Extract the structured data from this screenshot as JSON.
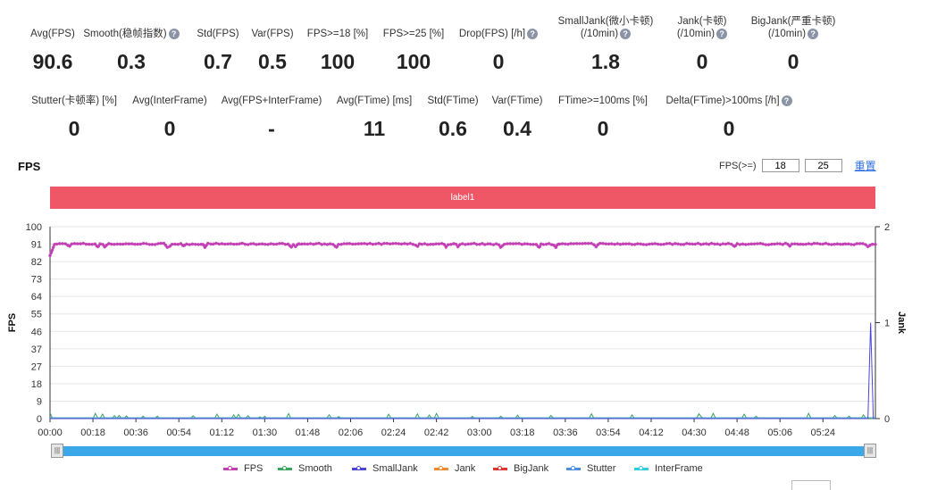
{
  "metrics_row1": [
    {
      "label": "Avg(FPS)",
      "value": "90.6",
      "help": false
    },
    {
      "label": "Smooth(稳帧指数)",
      "value": "0.3",
      "help": true
    },
    {
      "label": "Std(FPS)",
      "value": "0.7",
      "help": false
    },
    {
      "label": "Var(FPS)",
      "value": "0.5",
      "help": false
    },
    {
      "label": "FPS>=18 [%]",
      "value": "100",
      "help": false
    },
    {
      "label": "FPS>=25 [%]",
      "value": "100",
      "help": false
    },
    {
      "label": "Drop(FPS) [/h]",
      "value": "0",
      "help": true
    },
    {
      "label": "SmallJank(微小卡顿)",
      "label2": "(/10min)",
      "value": "1.8",
      "help": true
    },
    {
      "label": "Jank(卡顿)",
      "label2": "(/10min)",
      "value": "0",
      "help": true
    },
    {
      "label": "BigJank(严重卡顿)",
      "label2": "(/10min)",
      "value": "0",
      "help": true
    }
  ],
  "metrics_row2": [
    {
      "label": "Stutter(卡顿率) [%]",
      "value": "0",
      "help": false
    },
    {
      "label": "Avg(InterFrame)",
      "value": "0",
      "help": false
    },
    {
      "label": "Avg(FPS+InterFrame)",
      "value": "-",
      "help": false
    },
    {
      "label": "Avg(FTime) [ms]",
      "value": "11",
      "help": false
    },
    {
      "label": "Std(FTime)",
      "value": "0.6",
      "help": false
    },
    {
      "label": "Var(FTime)",
      "value": "0.4",
      "help": false
    },
    {
      "label": "FTime>=100ms [%]",
      "value": "0",
      "help": false
    },
    {
      "label": "Delta(FTime)>100ms [/h]",
      "value": "0",
      "help": true
    }
  ],
  "chart_header": {
    "title": "FPS",
    "threshold_label": "FPS(>=)",
    "threshold_1": "18",
    "threshold_2": "25",
    "reset_label": "重置"
  },
  "label_band": "label1",
  "help_glyph": "?",
  "colors": {
    "fps": "#c23cb4",
    "smooth": "#3aa55d",
    "small_jank": "#4b45d6",
    "jank": "#f5862b",
    "big_jank": "#e0352d",
    "stutter": "#4a90e2",
    "inter_frame": "#2fcde0",
    "band": "#ef5766"
  },
  "chart_data": {
    "type": "line",
    "xlabel": "",
    "ylabel": "FPS",
    "y2label": "Jank",
    "ylim": [
      0,
      100
    ],
    "yticks": [
      "0",
      "9",
      "18",
      "27",
      "37",
      "46",
      "55",
      "64",
      "73",
      "82",
      "91",
      "100"
    ],
    "y2lim": [
      0,
      2
    ],
    "y2ticks": [
      "0",
      "1",
      "2"
    ],
    "xlim_seconds": [
      0,
      346
    ],
    "x_tick_labels": [
      "00:00",
      "00:18",
      "00:36",
      "00:54",
      "01:12",
      "01:30",
      "01:48",
      "02:06",
      "02:24",
      "02:42",
      "03:00",
      "03:18",
      "03:36",
      "03:54",
      "04:12",
      "04:30",
      "04:48",
      "05:06",
      "05:24"
    ],
    "series": [
      {
        "name": "FPS",
        "axis": "left",
        "description_values": {
          "start": 85,
          "typical": 91,
          "min_dip": 89
        }
      },
      {
        "name": "Smooth",
        "axis": "left",
        "description_values": {
          "typical": 0.3,
          "max_spike": 3
        }
      },
      {
        "name": "SmallJank",
        "axis": "right",
        "spikes": [
          {
            "time_s": 344,
            "value": 1
          }
        ]
      },
      {
        "name": "Jank",
        "axis": "right",
        "typical": 0
      },
      {
        "name": "BigJank",
        "axis": "right",
        "typical": 0
      },
      {
        "name": "Stutter",
        "axis": "right",
        "typical": 0
      },
      {
        "name": "InterFrame",
        "axis": "right",
        "typical": 0
      }
    ],
    "legend": [
      "FPS",
      "Smooth",
      "SmallJank",
      "Jank",
      "BigJank",
      "Stutter",
      "InterFrame"
    ],
    "legend_position": "bottom"
  }
}
